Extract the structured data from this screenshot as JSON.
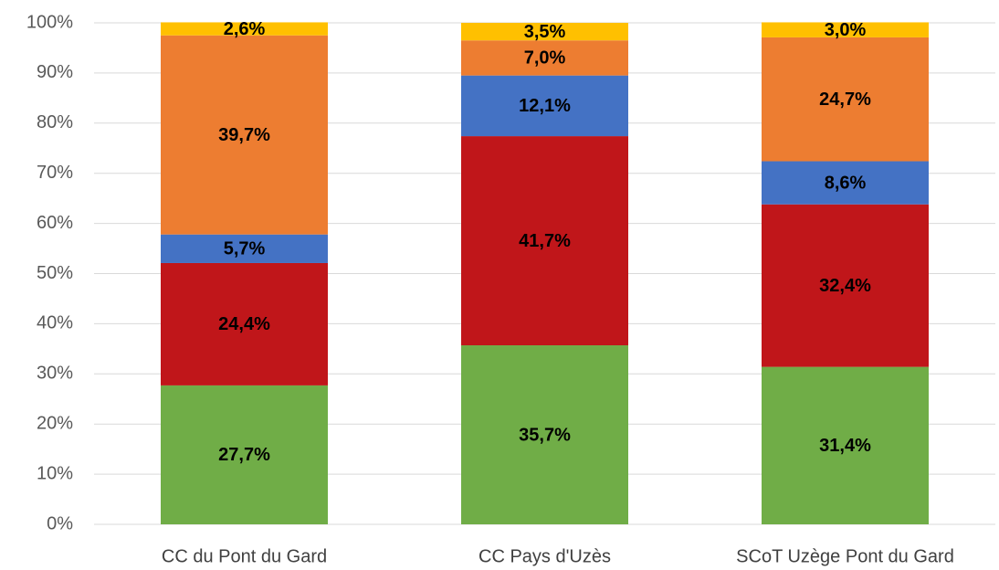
{
  "chart_data": {
    "type": "stacked_bar",
    "categories": [
      "CC du Pont du Gard",
      "CC Pays d'Uzès",
      "SCoT Uzège Pont du Gard"
    ],
    "series": [
      {
        "color": "#70ad47",
        "values": [
          27.7,
          35.7,
          31.4
        ],
        "value_labels": [
          "27,7%",
          "35,7%",
          "31,4%"
        ]
      },
      {
        "color": "#c0161a",
        "values": [
          24.4,
          41.7,
          32.4
        ],
        "value_labels": [
          "24,4%",
          "41,7%",
          "32,4%"
        ]
      },
      {
        "color": "#4472c4",
        "values": [
          5.7,
          12.1,
          8.6
        ],
        "value_labels": [
          "5,7%",
          "12,1%",
          "8,6%"
        ]
      },
      {
        "color": "#ed7d31",
        "values": [
          39.7,
          7.0,
          24.7
        ],
        "value_labels": [
          "39,7%",
          "7,0%",
          "24,7%"
        ]
      },
      {
        "color": "#ffc000",
        "values": [
          2.6,
          3.5,
          3.0
        ],
        "value_labels": [
          "2,6%",
          "3,5%",
          "3,0%"
        ]
      }
    ],
    "ylim": [
      0,
      100
    ],
    "yticks": [
      {
        "value": 0,
        "label": "0%"
      },
      {
        "value": 10,
        "label": "10%"
      },
      {
        "value": 20,
        "label": "20%"
      },
      {
        "value": 30,
        "label": "30%"
      },
      {
        "value": 40,
        "label": "40%"
      },
      {
        "value": 50,
        "label": "50%"
      },
      {
        "value": 60,
        "label": "60%"
      },
      {
        "value": 70,
        "label": "70%"
      },
      {
        "value": 80,
        "label": "80%"
      },
      {
        "value": 90,
        "label": "90%"
      },
      {
        "value": 100,
        "label": "100%"
      }
    ],
    "grid": true
  }
}
